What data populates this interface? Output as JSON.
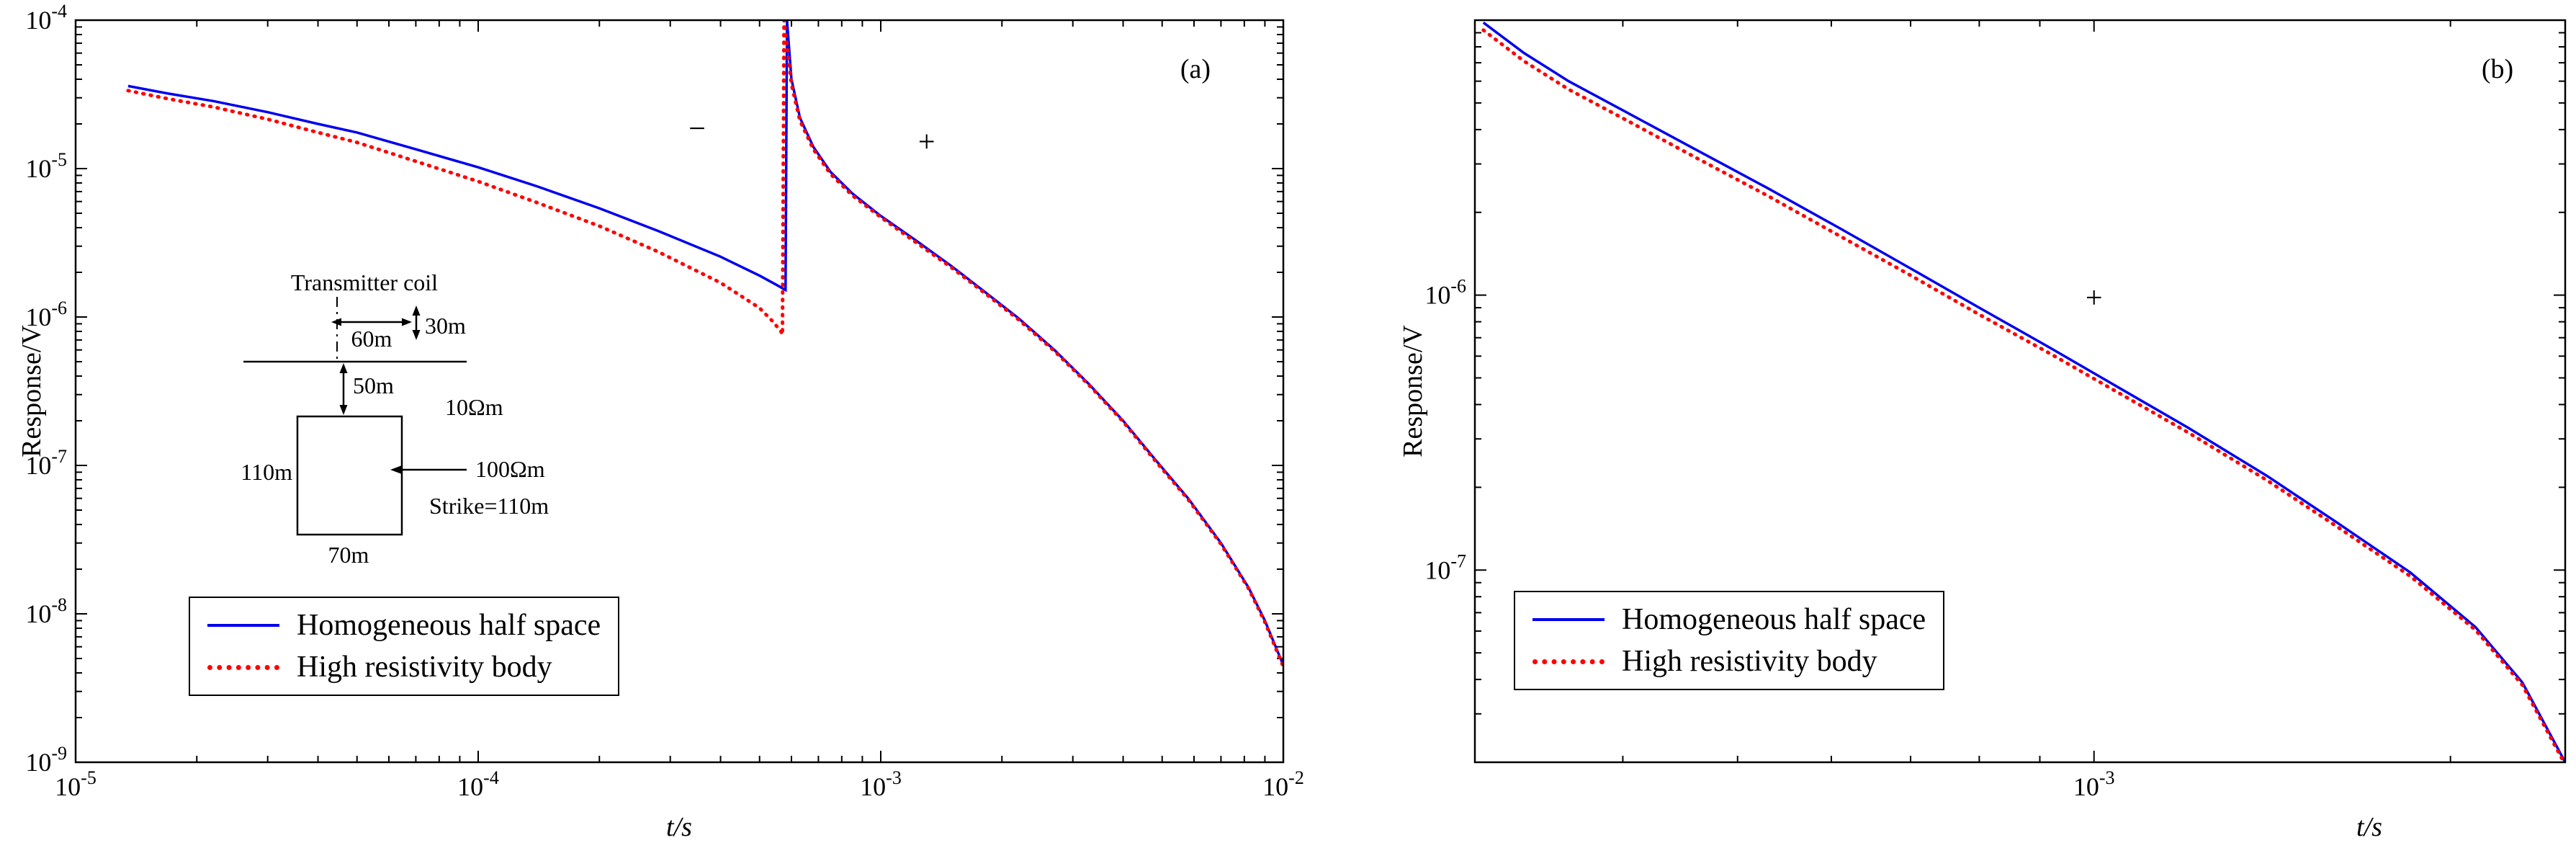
{
  "figure": {
    "background": "#ffffff",
    "colors": {
      "homogeneous_half_space": "#0000ee",
      "high_resistivity_body": "#ff0000",
      "axis": "#000000"
    }
  },
  "panels": [
    {
      "tag": "(a)",
      "inset": {
        "labels": {
          "transmitter": "Transmitter coil",
          "d60": "60m",
          "d30": "30m",
          "d50": "50m",
          "rho_host": "10Ωm",
          "d110": "110m",
          "rho_body": "100Ωm",
          "strike": "Strike=110m",
          "d70": "70m"
        }
      }
    },
    {
      "tag": "(b)"
    }
  ],
  "chart_data": [
    {
      "type": "line",
      "title": "",
      "xlabel": "t/s",
      "ylabel": "Response/V",
      "x_scale": "log",
      "y_scale": "log",
      "xlim": [
        1e-05,
        0.01
      ],
      "ylim": [
        1e-09,
        0.0001
      ],
      "xticks": [
        1e-05,
        0.0001,
        0.001,
        0.01
      ],
      "yticks": [
        1e-09,
        1e-08,
        1e-07,
        1e-06,
        1e-05,
        0.0001
      ],
      "grid": false,
      "legend_position": "lower left",
      "annotations": [
        {
          "text": "−",
          "x": 0.00035,
          "y": 1.6e-05
        },
        {
          "text": "+",
          "x": 0.0013,
          "y": 1.3e-05
        }
      ],
      "series": [
        {
          "name": "Homogeneous half space",
          "color": "#0000ee",
          "style": "solid",
          "points": [
            [
              1.35e-05,
              3.6e-05
            ],
            [
              1.7e-05,
              3.2e-05
            ],
            [
              2.2e-05,
              2.85e-05
            ],
            [
              3e-05,
              2.4e-05
            ],
            [
              4e-05,
              2e-05
            ],
            [
              5e-05,
              1.75e-05
            ],
            [
              7e-05,
              1.35e-05
            ],
            [
              0.0001,
              1.02e-05
            ],
            [
              0.00014,
              7.6e-06
            ],
            [
              0.0002,
              5.4e-06
            ],
            [
              0.00028,
              3.8e-06
            ],
            [
              0.0004,
              2.55e-06
            ],
            [
              0.0005,
              1.9e-06
            ],
            [
              0.00055,
              1.65e-06
            ],
            [
              0.00058,
              1.52e-06
            ],
            [
              0.000585,
              0.0001
            ],
            [
              0.0006,
              4e-05
            ],
            [
              0.00063,
              2.2e-05
            ],
            [
              0.00068,
              1.4e-05
            ],
            [
              0.00075,
              9.5e-06
            ],
            [
              0.00085,
              6.8e-06
            ],
            [
              0.001,
              4.8e-06
            ],
            [
              0.0012,
              3.4e-06
            ],
            [
              0.0015,
              2.2e-06
            ],
            [
              0.0018,
              1.5e-06
            ],
            [
              0.0022,
              9.8e-07
            ],
            [
              0.0027,
              6e-07
            ],
            [
              0.0033,
              3.5e-07
            ],
            [
              0.004,
              2e-07
            ],
            [
              0.0048,
              1.1e-07
            ],
            [
              0.0058,
              6e-08
            ],
            [
              0.007,
              3e-08
            ],
            [
              0.0082,
              1.5e-08
            ],
            [
              0.009,
              9e-09
            ],
            [
              0.01,
              4.5e-09
            ]
          ]
        },
        {
          "name": "High resistivity body",
          "color": "#ff0000",
          "style": "dotted",
          "points": [
            [
              1.35e-05,
              3.35e-05
            ],
            [
              1.7e-05,
              2.95e-05
            ],
            [
              2.2e-05,
              2.6e-05
            ],
            [
              3e-05,
              2.15e-05
            ],
            [
              4e-05,
              1.75e-05
            ],
            [
              5e-05,
              1.5e-05
            ],
            [
              7e-05,
              1.12e-05
            ],
            [
              0.0001,
              8.2e-06
            ],
            [
              0.00014,
              5.9e-06
            ],
            [
              0.0002,
              4.1e-06
            ],
            [
              0.00028,
              2.75e-06
            ],
            [
              0.0004,
              1.7e-06
            ],
            [
              0.0005,
              1.15e-06
            ],
            [
              0.00054,
              9.3e-07
            ],
            [
              0.000565,
              8e-07
            ],
            [
              0.00057,
              7.6e-07
            ],
            [
              0.000575,
              0.0001
            ],
            [
              0.0006,
              3.7e-05
            ],
            [
              0.00063,
              2.1e-05
            ],
            [
              0.00068,
              1.35e-05
            ],
            [
              0.00075,
              9.2e-06
            ],
            [
              0.00085,
              6.6e-06
            ],
            [
              0.001,
              4.7e-06
            ],
            [
              0.0012,
              3.3e-06
            ],
            [
              0.0015,
              2.15e-06
            ],
            [
              0.0018,
              1.47e-06
            ],
            [
              0.0022,
              9.6e-07
            ],
            [
              0.0027,
              5.9e-07
            ],
            [
              0.0033,
              3.45e-07
            ],
            [
              0.004,
              1.97e-07
            ],
            [
              0.0048,
              1.08e-07
            ],
            [
              0.0058,
              5.9e-08
            ],
            [
              0.007,
              2.95e-08
            ],
            [
              0.0082,
              1.48e-08
            ],
            [
              0.009,
              8.8e-09
            ],
            [
              0.01,
              4.4e-09
            ]
          ]
        }
      ]
    },
    {
      "type": "line",
      "title": "",
      "xlabel": "t/s",
      "ylabel": "Response/V",
      "x_scale": "log",
      "y_scale": "log",
      "xlim": [
        0.0003,
        0.0025
      ],
      "ylim": [
        2e-08,
        1e-05
      ],
      "xticks": [
        0.001
      ],
      "yticks": [
        1e-07,
        1e-06
      ],
      "grid": false,
      "legend_position": "lower left",
      "annotations": [
        {
          "text": "+",
          "x": 0.001,
          "y": 9e-07
        }
      ],
      "series": [
        {
          "name": "Homogeneous half space",
          "color": "#0000ee",
          "style": "solid",
          "points": [
            [
              0.000305,
              9.8e-06
            ],
            [
              0.00033,
              7.6e-06
            ],
            [
              0.00036,
              6e-06
            ],
            [
              0.0004,
              4.7e-06
            ],
            [
              0.00046,
              3.4e-06
            ],
            [
              0.00053,
              2.45e-06
            ],
            [
              0.00061,
              1.75e-06
            ],
            [
              0.0007,
              1.25e-06
            ],
            [
              0.0008,
              9e-07
            ],
            [
              0.00092,
              6.4e-07
            ],
            [
              0.00105,
              4.6e-07
            ],
            [
              0.0012,
              3.3e-07
            ],
            [
              0.0014,
              2.2e-07
            ],
            [
              0.0016,
              1.5e-07
            ],
            [
              0.00185,
              9.8e-08
            ],
            [
              0.0021,
              6.2e-08
            ],
            [
              0.0023,
              3.9e-08
            ],
            [
              0.0025,
              2e-08
            ]
          ]
        },
        {
          "name": "High resistivity body",
          "color": "#ff0000",
          "style": "dotted",
          "points": [
            [
              0.000305,
              9.2e-06
            ],
            [
              0.00033,
              7.1e-06
            ],
            [
              0.00036,
              5.6e-06
            ],
            [
              0.0004,
              4.4e-06
            ],
            [
              0.00046,
              3.18e-06
            ],
            [
              0.00053,
              2.3e-06
            ],
            [
              0.00061,
              1.64e-06
            ],
            [
              0.0007,
              1.18e-06
            ],
            [
              0.0008,
              8.5e-07
            ],
            [
              0.00092,
              6.1e-07
            ],
            [
              0.00105,
              4.4e-07
            ],
            [
              0.0012,
              3.17e-07
            ],
            [
              0.0014,
              2.12e-07
            ],
            [
              0.0016,
              1.45e-07
            ],
            [
              0.00185,
              9.5e-08
            ],
            [
              0.0021,
              6.05e-08
            ],
            [
              0.0023,
              3.82e-08
            ],
            [
              0.0025,
              1.96e-08
            ]
          ]
        }
      ]
    }
  ]
}
